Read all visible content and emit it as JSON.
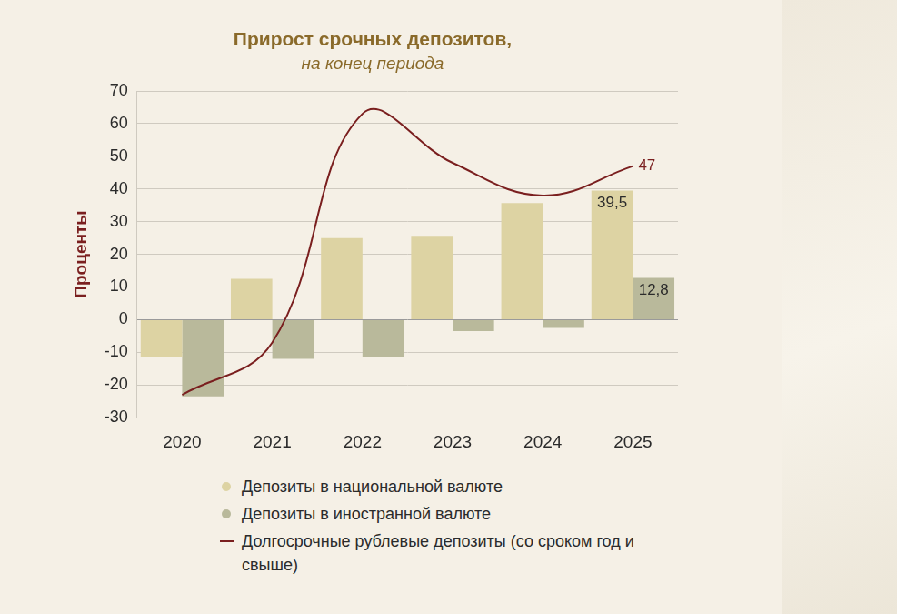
{
  "chart_data": {
    "type": "bar",
    "title": "Прирост срочных депозитов,",
    "subtitle": "на конец периода",
    "y_label": "Проценты",
    "categories": [
      "2020",
      "2021",
      "2022",
      "2023",
      "2024",
      "2025"
    ],
    "series": [
      {
        "name": "Депозиты в национальной валюте",
        "type": "bar",
        "color": "#ddd3a3",
        "values": [
          -11.5,
          12.5,
          25,
          25.7,
          35.7,
          39.5
        ],
        "value_labels": [
          null,
          null,
          null,
          null,
          null,
          "39,5"
        ]
      },
      {
        "name": "Депозиты в иностранной валюте",
        "type": "bar",
        "color": "#b9b99b",
        "values": [
          -23.5,
          -12,
          -11.5,
          -3.5,
          -2.5,
          12.8
        ],
        "value_labels": [
          null,
          null,
          null,
          null,
          null,
          "12,8"
        ]
      },
      {
        "name": "Долгосрочные рублевые депозиты (со сроком год и свыше)",
        "type": "line",
        "color": "#7a1f1f",
        "line_style": "solid",
        "values": [
          -23,
          -7,
          63,
          48,
          38,
          47
        ],
        "value_labels": [
          null,
          null,
          null,
          null,
          null,
          "47"
        ]
      }
    ],
    "ylim": [
      -30,
      70
    ],
    "yticks": [
      -30,
      -20,
      -10,
      0,
      10,
      20,
      30,
      40,
      50,
      60,
      70
    ],
    "grid": true,
    "legend": "bottom"
  }
}
